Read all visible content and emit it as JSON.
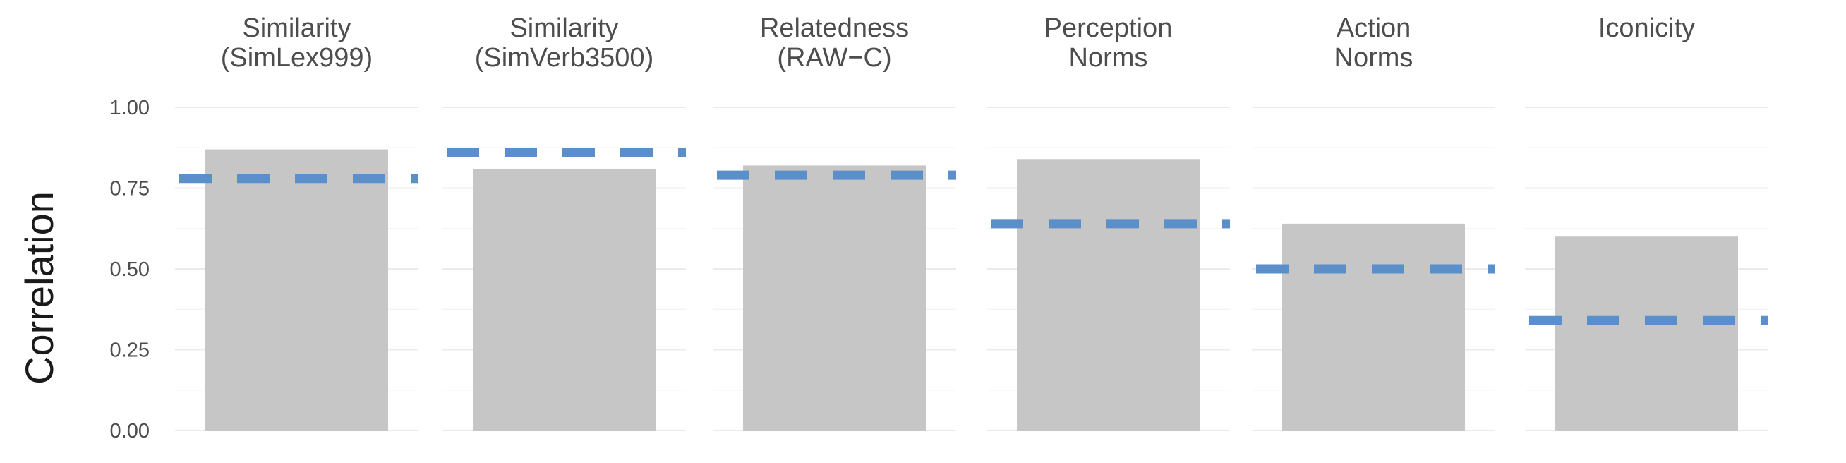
{
  "chart_data": {
    "type": "bar",
    "ylabel": "Correlation",
    "ylim": [
      0,
      1
    ],
    "yticks": [
      "0.00",
      "0.25",
      "0.50",
      "0.75",
      "1.00"
    ],
    "grid": true,
    "facets": [
      {
        "title_lines": [
          "Similarity",
          "(SimLex999)"
        ],
        "bar_value": 0.87,
        "reference_value": 0.78
      },
      {
        "title_lines": [
          "Similarity",
          "(SimVerb3500)"
        ],
        "bar_value": 0.81,
        "reference_value": 0.86
      },
      {
        "title_lines": [
          "Relatedness",
          "(RAW−C)"
        ],
        "bar_value": 0.82,
        "reference_value": 0.79
      },
      {
        "title_lines": [
          "Perception",
          "Norms"
        ],
        "bar_value": 0.84,
        "reference_value": 0.64
      },
      {
        "title_lines": [
          "Action",
          "Norms"
        ],
        "bar_value": 0.64,
        "reference_value": 0.5
      },
      {
        "title_lines": [
          "Iconicity"
        ],
        "bar_value": 0.6,
        "reference_value": 0.34
      }
    ],
    "colors": {
      "bar": "#c6c6c6",
      "reference_line": "#5b8fc9",
      "reference_line_overlap": "#4f6f93"
    }
  }
}
